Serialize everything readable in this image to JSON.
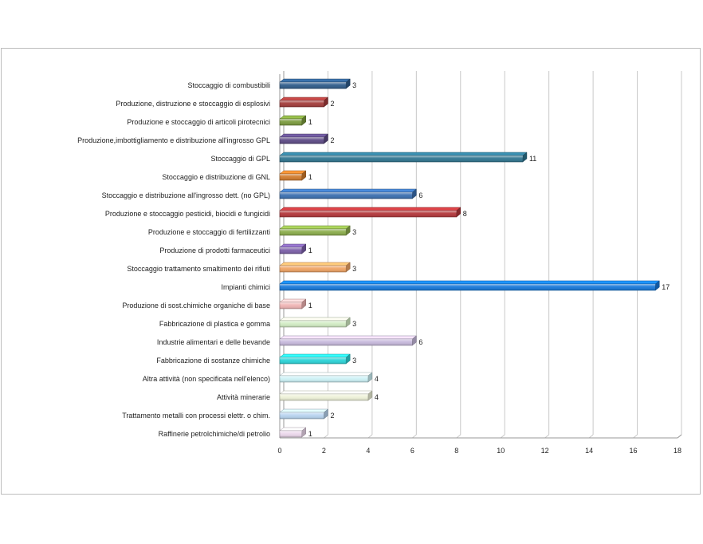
{
  "chart_data": {
    "type": "bar",
    "orientation": "horizontal",
    "title": "",
    "xlabel": "",
    "ylabel": "",
    "xlim": [
      0,
      18
    ],
    "x_ticks": [
      0,
      2,
      4,
      6,
      8,
      10,
      12,
      14,
      16,
      18
    ],
    "grid": true,
    "legend": "none",
    "categories": [
      "Stoccaggio di combustibili",
      "Produzione, distruzione e stoccaggio di esplosivi",
      "Produzione e stoccaggio di articoli pirotecnici",
      "Produzione,imbottigliamento  e distribuzione all'ingrosso GPL",
      "Stoccaggio di GPL",
      "Stoccaggio e distribuzione di GNL",
      "Stoccaggio e distribuzione all'ingrosso dett. (no GPL)",
      "Produzione e stoccaggio pesticidi, biocidi e fungicidi",
      "Produzione e stoccaggio di fertilizzanti",
      "Produzione di prodotti farmaceutici",
      "Stoccaggio trattamento  smaltimento  dei rifiuti",
      "Impianti  chimici",
      "Produzione di sost.chimiche  organiche di base",
      "Fabbricazione di plastica  e gomma",
      "Industrie alimentari  e delle bevande",
      "Fabbricazione di sostanze  chimiche",
      "Altra attività  (non specificata nell'elenco)",
      "Attività minerarie",
      "Trattamento  metalli con processi elettr. o chim.",
      "Raffinerie petrolchimiche/di petrolio"
    ],
    "values": [
      3,
      2,
      1,
      2,
      11,
      1,
      6,
      8,
      3,
      1,
      3,
      17,
      1,
      3,
      6,
      3,
      4,
      4,
      2,
      1
    ],
    "colors": [
      "#2f5b8a",
      "#a23b3a",
      "#7a9a3d",
      "#5d4a85",
      "#2f7590",
      "#d07a2c",
      "#3b6fb0",
      "#b3363a",
      "#8aac4a",
      "#7b5fa8",
      "#f0a464",
      "#1677d8",
      "#f0b4b4",
      "#d2ecc4",
      "#c7b9dc",
      "#2ad4d8",
      "#cdf2f6",
      "#eef2d8",
      "#b8d4f0",
      "#ecd8ec"
    ]
  }
}
